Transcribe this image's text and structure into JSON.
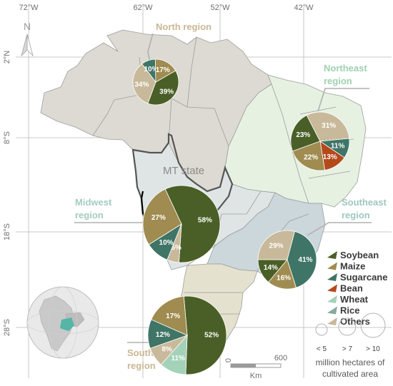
{
  "axes": {
    "lon_ticks": [
      "72°W",
      "62°W",
      "52°W",
      "42°W"
    ],
    "lat_ticks": [
      "2°N",
      "8°S",
      "18°S",
      "28°S"
    ]
  },
  "north_arrow": "N",
  "mt_label": "MT state",
  "colors": {
    "Soybean": "#4a5f27",
    "Maize": "#a08b50",
    "Sugarcane": "#3f7566",
    "Bean": "#b44a1c",
    "Wheat": "#a3d2b8",
    "Rice": "#88a99c",
    "Others": "#c8b99a"
  },
  "regions": [
    {
      "id": "north",
      "name": [
        "North region"
      ],
      "name_color": "#c9b792",
      "slices": [
        {
          "crop": "Soybean",
          "pct": 39,
          "label": "39%"
        },
        {
          "crop": "Others",
          "pct": 34,
          "label": "34%"
        },
        {
          "crop": "Wheat",
          "pct": 0,
          "label": ""
        },
        {
          "crop": "Rice",
          "pct": 0,
          "label": ""
        },
        {
          "crop": "Sugarcane",
          "pct": 10,
          "label": "10%"
        },
        {
          "crop": "Bean",
          "pct": 0,
          "label": ""
        },
        {
          "crop": "Maize",
          "pct": 17,
          "label": "17%"
        }
      ]
    },
    {
      "id": "northeast",
      "name": [
        "Northeast",
        "region"
      ],
      "name_color": "#9fd0b0",
      "slices": [
        {
          "crop": "Soybean",
          "pct": 23,
          "label": "23%"
        },
        {
          "crop": "Others",
          "pct": 31,
          "label": "31%"
        },
        {
          "crop": "Sugarcane",
          "pct": 11,
          "label": "11%"
        },
        {
          "crop": "Bean",
          "pct": 13,
          "label": "13%"
        },
        {
          "crop": "Maize",
          "pct": 22,
          "label": "22%"
        }
      ]
    },
    {
      "id": "midwest",
      "name": [
        "Midwest",
        "region"
      ],
      "name_color": "#a3ccc1",
      "slices": [
        {
          "crop": "Soybean",
          "pct": 58,
          "label": "58%"
        },
        {
          "crop": "Others",
          "pct": 5,
          "label": "5%"
        },
        {
          "crop": "Sugarcane",
          "pct": 10,
          "label": "10%"
        },
        {
          "crop": "Bean",
          "pct": 0,
          "label": ""
        },
        {
          "crop": "Maize",
          "pct": 27,
          "label": "27%"
        }
      ]
    },
    {
      "id": "southeast",
      "name": [
        "Southeast",
        "region"
      ],
      "name_color": "#9fc7c0",
      "slices": [
        {
          "crop": "Soybean",
          "pct": 14,
          "label": "14%"
        },
        {
          "crop": "Others",
          "pct": 29,
          "label": "29%"
        },
        {
          "crop": "Sugarcane",
          "pct": 41,
          "label": "41%"
        },
        {
          "crop": "Bean",
          "pct": 0,
          "label": ""
        },
        {
          "crop": "Maize",
          "pct": 16,
          "label": "16%"
        }
      ]
    },
    {
      "id": "south",
      "name": [
        "South",
        "region"
      ],
      "name_color": "#c9b792",
      "slices": [
        {
          "crop": "Soybean",
          "pct": 52,
          "label": "52%"
        },
        {
          "crop": "Wheat",
          "pct": 11,
          "label": "11%"
        },
        {
          "crop": "Others",
          "pct": 8,
          "label": "8%"
        },
        {
          "crop": "Sugarcane",
          "pct": 12,
          "label": "12%"
        },
        {
          "crop": "Bean",
          "pct": 0,
          "label": ""
        },
        {
          "crop": "Maize",
          "pct": 17,
          "label": "17%"
        }
      ]
    }
  ],
  "legend": [
    "Soybean",
    "Maize",
    "Sugarcane",
    "Bean",
    "Wheat",
    "Rice",
    "Others"
  ],
  "size_legend": {
    "labels": [
      "< 5",
      "> 7",
      "> 10"
    ],
    "caption": [
      "million hectares of",
      "cultivated area"
    ]
  },
  "scale_bar": {
    "start": "0",
    "end": "600",
    "unit": "Km"
  }
}
